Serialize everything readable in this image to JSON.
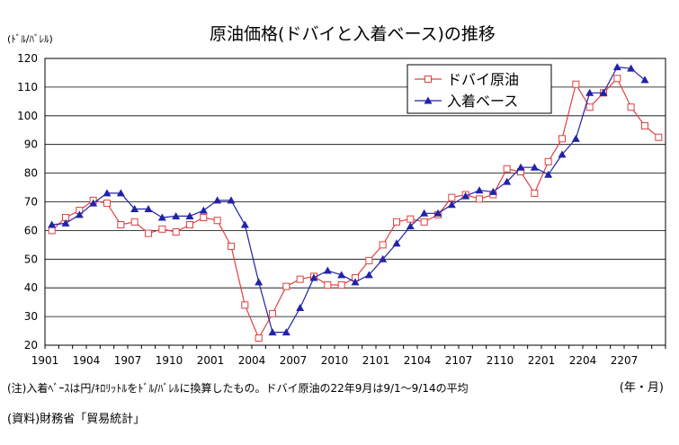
{
  "chart_data": {
    "type": "line",
    "title": "原油価格(ドバイと入着ベース)の推移",
    "unit_label": "(ﾄﾞﾙ/ﾊﾞﾚﾙ)",
    "x_unit_label": "(年・月)",
    "ylim": [
      20,
      120
    ],
    "yticks": [
      20,
      30,
      40,
      50,
      60,
      70,
      80,
      90,
      100,
      110,
      120
    ],
    "x_tick_labels": [
      "1901",
      "1904",
      "1907",
      "1910",
      "2001",
      "2004",
      "2007",
      "2010",
      "2101",
      "2104",
      "2107",
      "2110",
      "2201",
      "2204",
      "2207"
    ],
    "grid": true,
    "legend_position": "top-right",
    "series": [
      {
        "name": "ドバイ原油",
        "color": "#e04040",
        "marker": "square-open",
        "values": [
          60.0,
          64.5,
          67.0,
          70.5,
          69.5,
          62.0,
          63.0,
          59.0,
          60.5,
          59.5,
          62.0,
          64.5,
          63.5,
          54.5,
          34.0,
          22.5,
          31.0,
          40.5,
          43.0,
          44.0,
          41.0,
          41.0,
          43.5,
          49.5,
          55.0,
          63.0,
          64.0,
          63.0,
          65.5,
          71.5,
          72.5,
          71.0,
          72.5,
          81.5,
          80.5,
          73.0,
          84.0,
          92.0,
          111.0,
          103.0,
          108.0,
          113.0,
          103.0,
          96.5,
          92.5
        ]
      },
      {
        "name": "入着ベース",
        "color": "#2222aa",
        "marker": "triangle-filled",
        "values": [
          62.0,
          62.5,
          65.5,
          69.5,
          73.0,
          73.0,
          67.5,
          67.5,
          64.5,
          65.0,
          65.0,
          67.0,
          70.5,
          70.5,
          62.0,
          42.0,
          24.5,
          24.5,
          33.0,
          43.5,
          46.0,
          44.5,
          42.0,
          44.5,
          50.0,
          55.5,
          61.5,
          66.0,
          66.0,
          69.0,
          72.0,
          74.0,
          73.5,
          77.0,
          82.0,
          82.0,
          79.5,
          86.5,
          92.0,
          108.0,
          108.0,
          117.0,
          116.5,
          112.5
        ]
      }
    ]
  },
  "notes": {
    "note1": "(注)入着ﾍﾞｰｽは円/ｷﾛﾘｯﾄﾙをﾄﾞﾙ/ﾊﾞﾚﾙに換算したもの。ドバイ原油の22年9月は9/1～9/14の平均",
    "note2": "(資料)財務省「貿易統計」"
  }
}
